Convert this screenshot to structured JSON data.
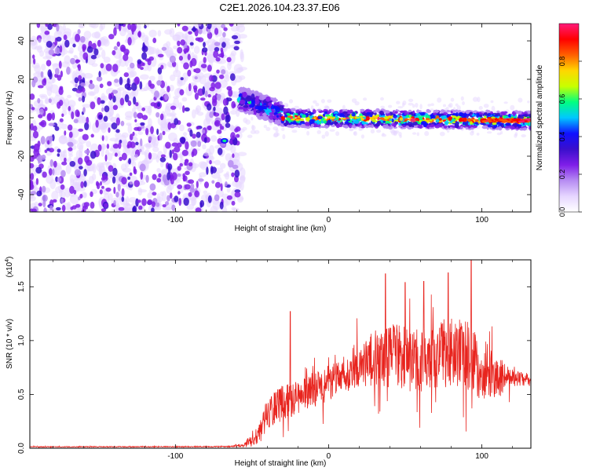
{
  "title": "C2E1.2026.104.23.37.E06",
  "chart_data": [
    {
      "type": "heatmap",
      "xlabel": "Height of straight line (km)",
      "ylabel": "Frequency (Hz)",
      "xlim": [
        -195,
        132
      ],
      "ylim": [
        -49,
        49
      ],
      "xticks": [
        -100,
        0,
        100
      ],
      "yticks": [
        -40,
        -20,
        0,
        20,
        40
      ],
      "xtick_labels": [
        "-100",
        "0",
        "100"
      ],
      "ytick_labels": [
        "-40",
        "-20",
        "0",
        "20",
        "40"
      ],
      "colorbar": {
        "label": "Normalized spectral amplitude",
        "range": [
          0,
          1
        ],
        "ticks": [
          0.0,
          0.2,
          0.4,
          0.6,
          0.8
        ],
        "tick_labels": [
          "0.0",
          "0.2",
          "0.4",
          "0.6",
          "0.8"
        ],
        "colors": [
          "#ffffff",
          "#e6d6ff",
          "#b68cf2",
          "#7f1ee8",
          "#3a0fcc",
          "#1010ff",
          "#00c8ff",
          "#00ff80",
          "#c8ff00",
          "#ffd700",
          "#ff6000",
          "#ff0000",
          "#ff1a7a"
        ]
      },
      "features": {
        "noise_region_x": [
          -195,
          -62
        ],
        "onset_x": -58,
        "hump_x": [
          -58,
          -30
        ],
        "hump_y": 10,
        "track_y": 0,
        "track_end_y": -1.5,
        "isolated_blob": {
          "x": -68,
          "y": -12
        }
      }
    },
    {
      "type": "line",
      "xlabel": "Height of straight line (km)",
      "ylabel": "SNR (10 * v/v)",
      "y_multiplier_label": "(x10",
      "y_multiplier_exp": "4",
      "y_multiplier_close": ")",
      "xlim": [
        -195,
        132
      ],
      "ylim": [
        0,
        1.75
      ],
      "xticks": [
        -100,
        0,
        100
      ],
      "yticks": [
        0.0,
        0.5,
        1.0,
        1.5
      ],
      "xtick_labels": [
        "-100",
        "0",
        "100"
      ],
      "ytick_labels": [
        "0.0",
        "0.5",
        "1.0",
        "1.5"
      ],
      "line_color": "#e8241e",
      "envelope_x": [
        -195,
        -65,
        -55,
        -45,
        -40,
        -30,
        -20,
        -10,
        0,
        10,
        20,
        30,
        40,
        50,
        60,
        70,
        80,
        90,
        100,
        110,
        120,
        132
      ],
      "envelope_mean": [
        0.013,
        0.015,
        0.03,
        0.14,
        0.32,
        0.42,
        0.47,
        0.55,
        0.6,
        0.67,
        0.77,
        0.83,
        0.86,
        0.84,
        0.8,
        0.86,
        0.9,
        0.86,
        0.75,
        0.66,
        0.65,
        0.63
      ],
      "envelope_spread": [
        0.004,
        0.005,
        0.02,
        0.1,
        0.14,
        0.17,
        0.16,
        0.16,
        0.17,
        0.19,
        0.22,
        0.26,
        0.3,
        0.3,
        0.3,
        0.32,
        0.32,
        0.33,
        0.3,
        0.2,
        0.08,
        0.06
      ],
      "peaks": [
        {
          "x": -25,
          "y": 1.27
        },
        {
          "x": 37,
          "y": 1.62
        },
        {
          "x": 50,
          "y": 1.54
        },
        {
          "x": 62,
          "y": 1.55
        },
        {
          "x": 78,
          "y": 1.63
        },
        {
          "x": 93,
          "y": 1.75
        }
      ]
    }
  ]
}
